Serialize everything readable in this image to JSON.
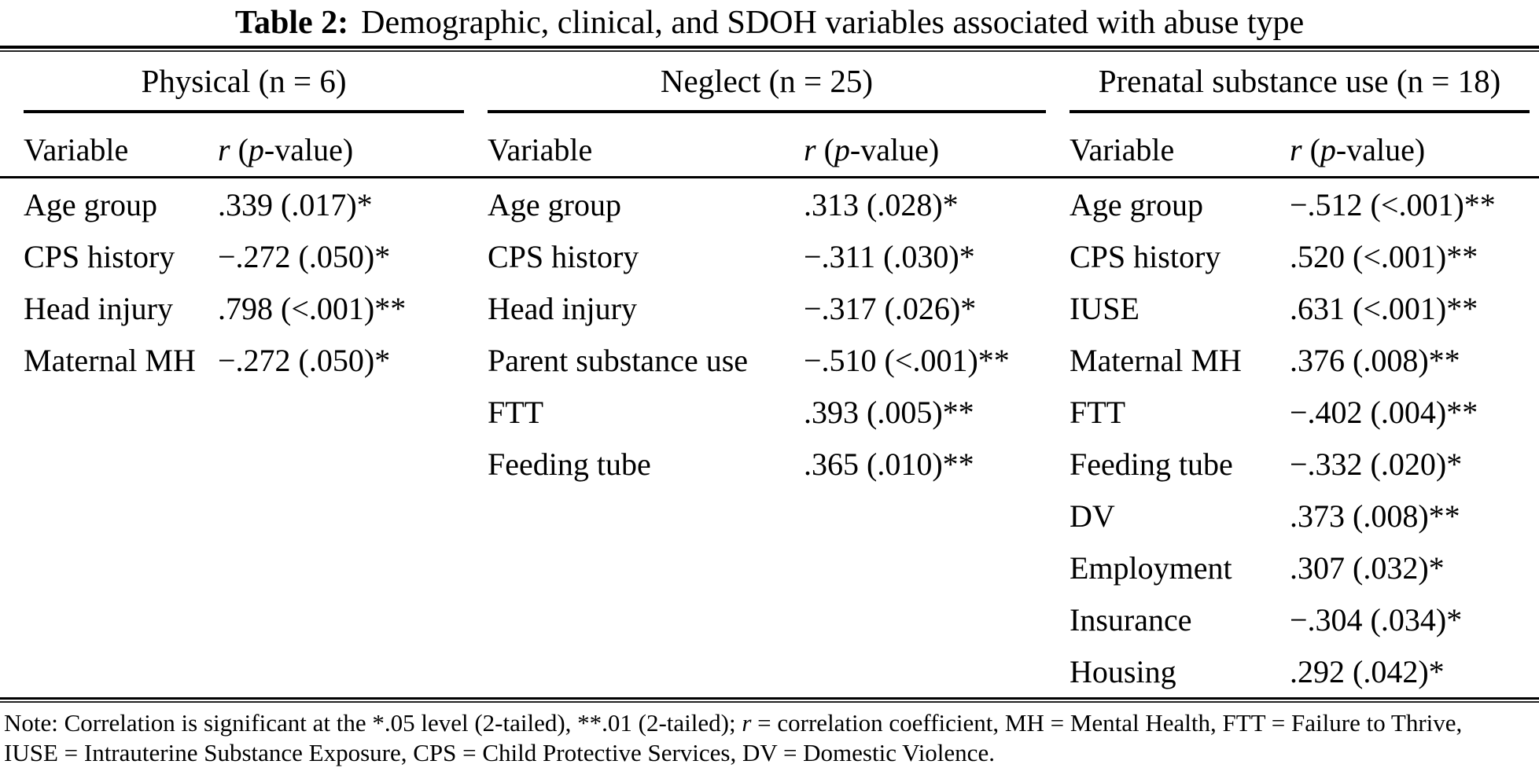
{
  "title": {
    "label": "Table 2:",
    "text": "Demographic, clinical, and SDOH variables associated with abuse type"
  },
  "column_header": {
    "variable": "Variable",
    "r": "r",
    "mid": " (",
    "p": "p",
    "suffix": "-value)"
  },
  "groups": [
    {
      "header": "Physical (n = 6)",
      "rows": [
        {
          "variable": "Age group",
          "value": ".339 (.017)*"
        },
        {
          "variable": "CPS history",
          "value": "−.272 (.050)*"
        },
        {
          "variable": "Head injury",
          "value": ".798 (<.001)**"
        },
        {
          "variable": "Maternal MH",
          "value": "−.272 (.050)*"
        }
      ]
    },
    {
      "header": "Neglect (n = 25)",
      "rows": [
        {
          "variable": "Age group",
          "value": ".313 (.028)*"
        },
        {
          "variable": "CPS history",
          "value": "−.311 (.030)*"
        },
        {
          "variable": "Head injury",
          "value": "−.317 (.026)*"
        },
        {
          "variable": "Parent substance use",
          "value": "−.510 (<.001)**"
        },
        {
          "variable": "FTT",
          "value": ".393 (.005)**"
        },
        {
          "variable": "Feeding tube",
          "value": ".365 (.010)**"
        }
      ]
    },
    {
      "header": "Prenatal substance use (n = 18)",
      "rows": [
        {
          "variable": "Age group",
          "value": "−.512 (<.001)**"
        },
        {
          "variable": "CPS history",
          "value": ".520 (<.001)**"
        },
        {
          "variable": "IUSE",
          "value": ".631 (<.001)**"
        },
        {
          "variable": "Maternal MH",
          "value": ".376 (.008)**"
        },
        {
          "variable": "FTT",
          "value": "−.402 (.004)**"
        },
        {
          "variable": "Feeding tube",
          "value": "−.332 (.020)*"
        },
        {
          "variable": "DV",
          "value": ".373 (.008)**"
        },
        {
          "variable": "Employment",
          "value": ".307 (.032)*"
        },
        {
          "variable": "Insurance",
          "value": "−.304 (.034)*"
        },
        {
          "variable": "Housing",
          "value": ".292 (.042)*"
        }
      ]
    }
  ],
  "note": {
    "line1_pre": "Note: Correlation is significant at the *.05 level (2-tailed), **.01 (2-tailed); ",
    "line1_r": "r",
    "line1_post": " = correlation coefficient, MH = Mental Health, FTT = Failure to Thrive,",
    "line2": "IUSE = Intrauterine Substance Exposure, CPS = Child Protective Services, DV = Domestic Violence."
  },
  "colors": {
    "text": "#000000",
    "background": "#ffffff",
    "rule": "#000000"
  }
}
